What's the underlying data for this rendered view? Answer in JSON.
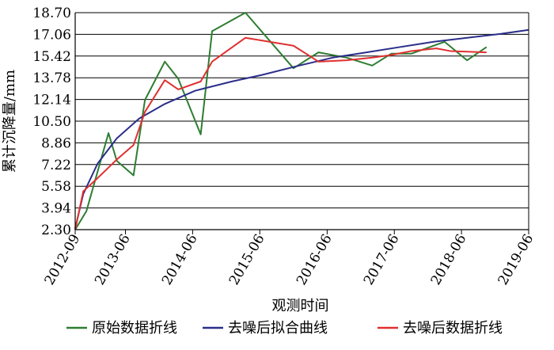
{
  "chart_data": {
    "type": "line",
    "xlabel": "观测时间",
    "ylabel": "累计沉降量/mm",
    "x_ticks": [
      "2012-09",
      "2013-06",
      "2014-06",
      "2015-06",
      "2016-06",
      "2017-06",
      "2018-06",
      "2019-06"
    ],
    "y_ticks": [
      2.3,
      3.94,
      5.58,
      7.22,
      8.86,
      10.5,
      12.14,
      13.78,
      15.42,
      17.06,
      18.7
    ],
    "y_tick_labels": [
      "2.30",
      "3.94",
      "5.58",
      "7.22",
      "8.86",
      "10.50",
      "12.14",
      "13.78",
      "15.42",
      "17.06",
      "18.70"
    ],
    "xlim": [
      "2012-09",
      "2019-06"
    ],
    "ylim": [
      2.3,
      18.7
    ],
    "grid": "horizontal",
    "legend_position": "bottom",
    "series": [
      {
        "name": "原始数据折线",
        "color": "#2e7d32",
        "points": [
          [
            "2012-09-01",
            2.3
          ],
          [
            "2012-11-01",
            3.7
          ],
          [
            "2013-03-01",
            9.6
          ],
          [
            "2013-04-15",
            7.5
          ],
          [
            "2013-07-15",
            6.4
          ],
          [
            "2013-09-15",
            12.1
          ],
          [
            "2014-01-01",
            15.0
          ],
          [
            "2014-03-15",
            13.7
          ],
          [
            "2014-07-15",
            9.5
          ],
          [
            "2014-09-15",
            17.3
          ],
          [
            "2015-03-15",
            18.7
          ],
          [
            "2015-12-01",
            14.5
          ],
          [
            "2016-04-15",
            15.7
          ],
          [
            "2016-09-15",
            15.3
          ],
          [
            "2017-02-01",
            14.7
          ],
          [
            "2017-05-15",
            15.6
          ],
          [
            "2017-09-01",
            15.6
          ],
          [
            "2018-03-01",
            16.5
          ],
          [
            "2018-07-01",
            15.1
          ],
          [
            "2018-10-15",
            16.1
          ]
        ]
      },
      {
        "name": "去噪后拟合曲线",
        "color": "#2b2e8a",
        "points": [
          [
            "2012-09-01",
            2.4
          ],
          [
            "2012-10-15",
            5.0
          ],
          [
            "2013-01-01",
            7.3
          ],
          [
            "2013-04-15",
            9.2
          ],
          [
            "2013-08-15",
            10.7
          ],
          [
            "2014-01-01",
            11.8
          ],
          [
            "2014-06-15",
            12.8
          ],
          [
            "2015-01-01",
            13.5
          ],
          [
            "2015-06-15",
            14.0
          ],
          [
            "2016-01-01",
            14.7
          ],
          [
            "2016-07-01",
            15.3
          ],
          [
            "2017-01-01",
            15.7
          ],
          [
            "2017-07-01",
            16.1
          ],
          [
            "2018-01-01",
            16.5
          ],
          [
            "2018-07-01",
            16.8
          ],
          [
            "2019-01-01",
            17.1
          ],
          [
            "2019-06-01",
            17.4
          ]
        ]
      },
      {
        "name": "去噪后数据折线",
        "color": "#e03030",
        "points": [
          [
            "2012-09-01",
            2.3
          ],
          [
            "2012-10-15",
            5.2
          ],
          [
            "2013-01-01",
            6.2
          ],
          [
            "2013-04-15",
            7.6
          ],
          [
            "2013-07-15",
            8.7
          ],
          [
            "2013-09-15",
            11.2
          ],
          [
            "2014-01-01",
            13.6
          ],
          [
            "2014-03-15",
            12.9
          ],
          [
            "2014-07-15",
            13.5
          ],
          [
            "2014-09-15",
            15.0
          ],
          [
            "2015-03-15",
            16.8
          ],
          [
            "2015-12-01",
            16.2
          ],
          [
            "2016-04-15",
            15.0
          ],
          [
            "2016-09-15",
            15.1
          ],
          [
            "2017-02-01",
            15.3
          ],
          [
            "2017-05-15",
            15.5
          ],
          [
            "2017-09-01",
            15.8
          ],
          [
            "2018-01-15",
            16.0
          ],
          [
            "2018-04-01",
            15.8
          ],
          [
            "2018-10-15",
            15.7
          ]
        ]
      }
    ]
  }
}
